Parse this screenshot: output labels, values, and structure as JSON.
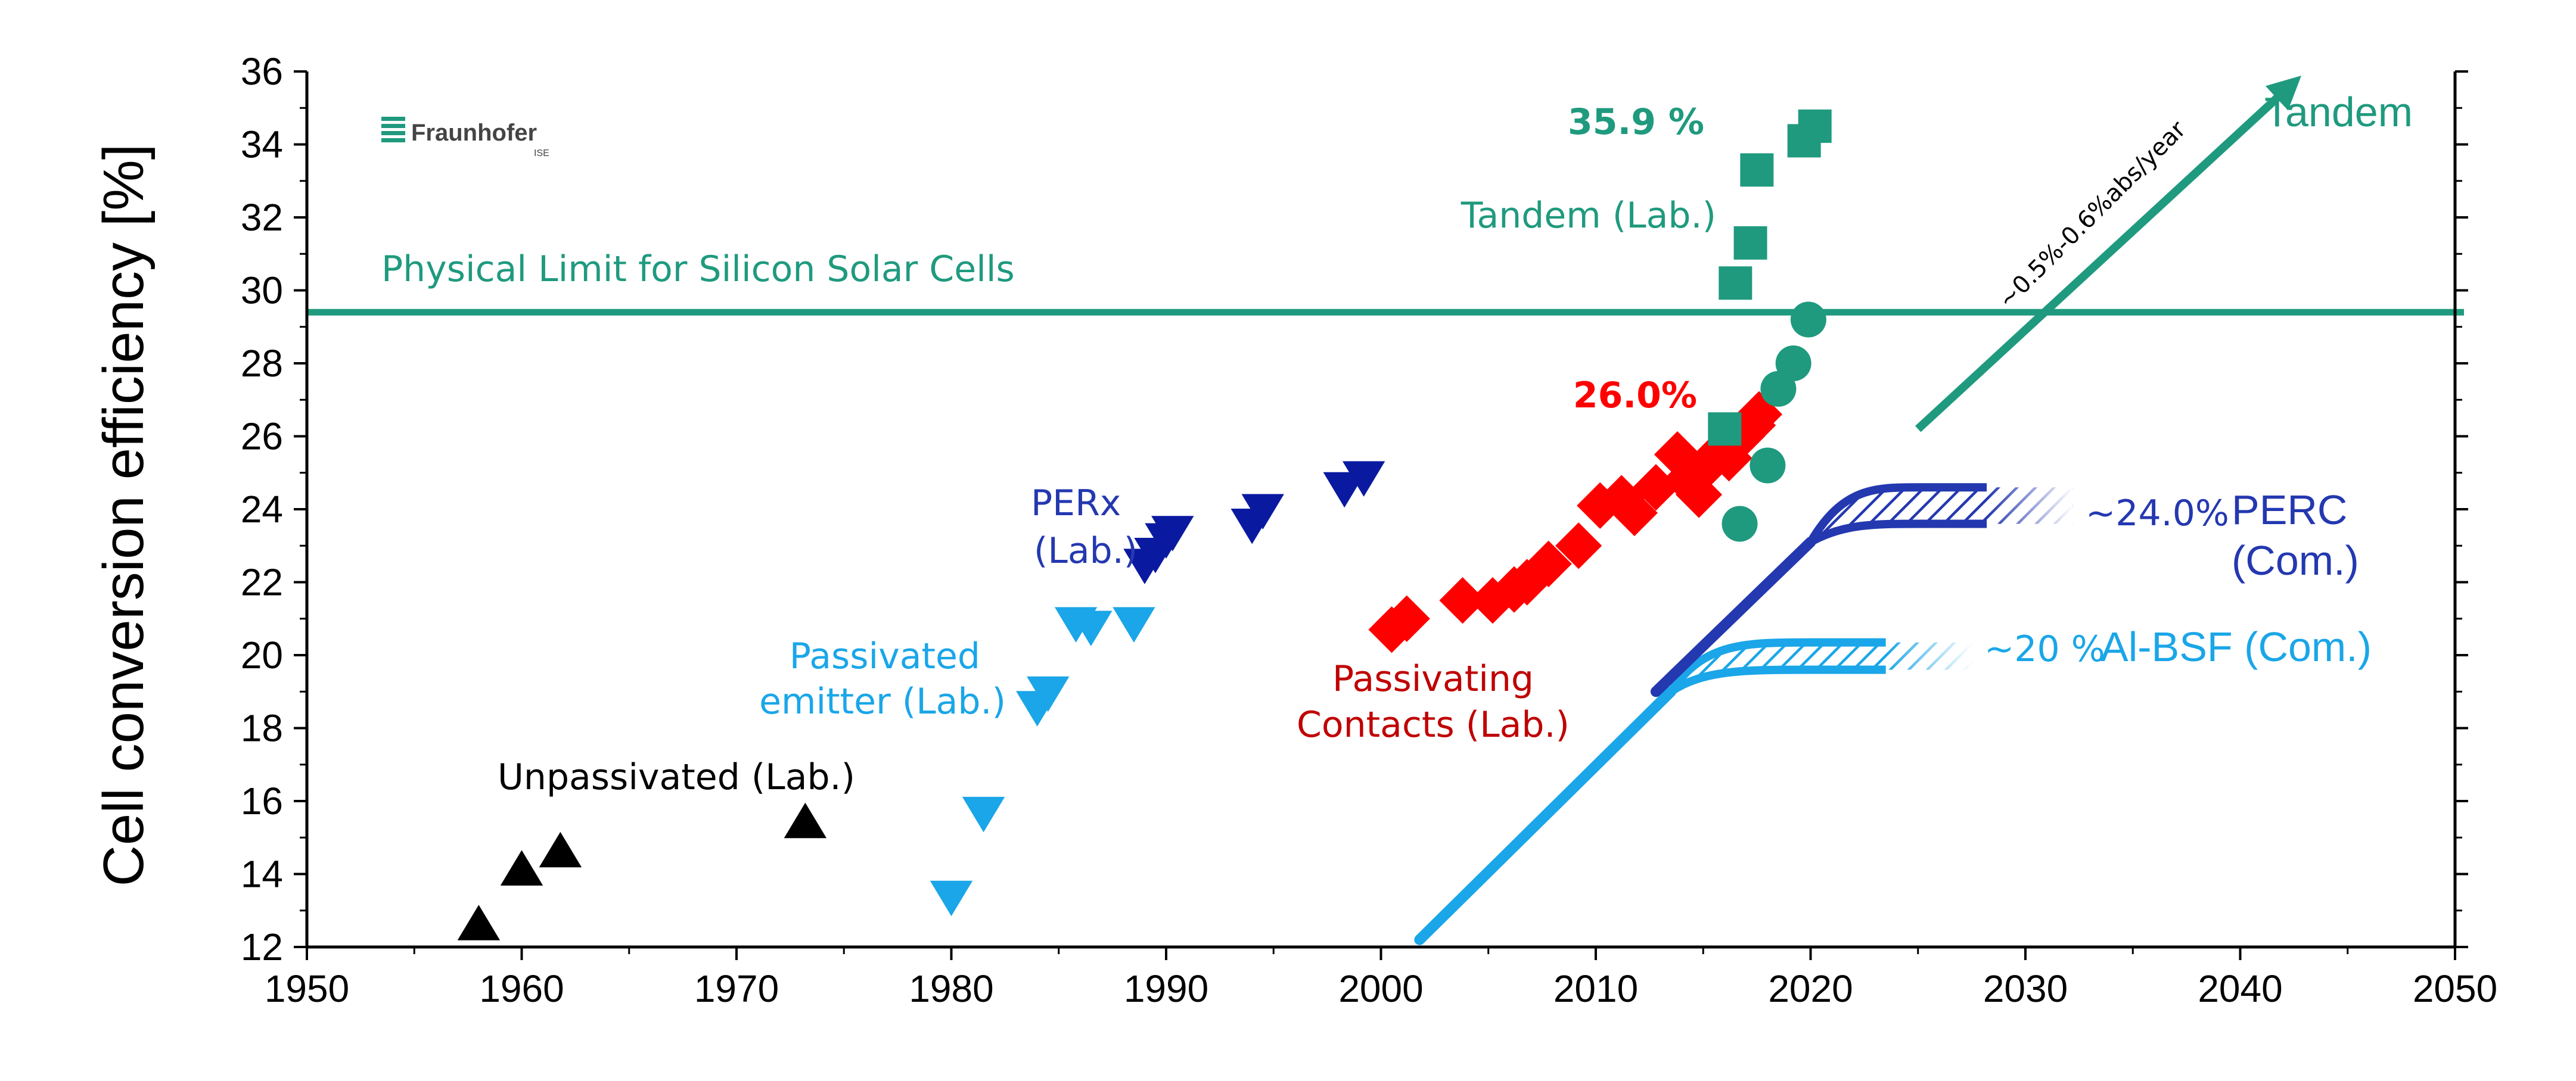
{
  "chart_data": {
    "type": "scatter",
    "ylabel": "Cell conversion efficiency [%]",
    "xlim": [
      1950,
      2050
    ],
    "ylim": [
      12,
      36
    ],
    "x_ticks": [
      1950,
      1960,
      1970,
      1980,
      1990,
      2000,
      2010,
      2020,
      2030,
      2040,
      2050
    ],
    "y_ticks": [
      12,
      14,
      16,
      18,
      20,
      22,
      24,
      26,
      28,
      30,
      32,
      34,
      36
    ],
    "grid": false,
    "logo": "Fraunhofer ISE",
    "limit_line": {
      "label": "Physical Limit for Silicon Solar Cells",
      "y": 29.4
    },
    "series": [
      {
        "name": "Unpassivated (Lab.)",
        "marker": "triangle-up",
        "color": "#000000",
        "x": [
          1958,
          1960,
          1961.8,
          1973.2
        ],
        "y": [
          12.6,
          14.1,
          14.6,
          15.4
        ]
      },
      {
        "name": "Passivated emitter (Lab.)",
        "marker": "triangle-down",
        "color": "#1aa6e8",
        "x": [
          1980,
          1981.5,
          1984,
          1984.5,
          1985.8,
          1986.5,
          1988.5
        ],
        "y": [
          13.4,
          15.7,
          18.6,
          19.0,
          20.9,
          20.8,
          20.9
        ]
      },
      {
        "name": "PERx (Lab.)",
        "marker": "triangle-down",
        "color": "#0a1aa0",
        "x": [
          1989,
          1989.5,
          1990,
          1990.3,
          1994,
          1994.5,
          1998.3,
          1999.2
        ],
        "y": [
          22.5,
          22.8,
          23.2,
          23.4,
          23.6,
          24.0,
          24.6,
          24.9
        ]
      },
      {
        "name": "Passivating Contacts (Lab.)",
        "marker": "diamond",
        "color": "#ff0000",
        "x": [
          2000.5,
          2001.2,
          2003.8,
          2005.2,
          2006.2,
          2006.8,
          2007.8,
          2009.2,
          2010.2,
          2011.2,
          2011.8,
          2012.8,
          2013.8,
          2014.2,
          2014.8,
          2015.2,
          2015.8,
          2016.2,
          2016.8,
          2017.3,
          2017.6
        ],
        "y": [
          20.7,
          21.0,
          21.5,
          21.5,
          21.8,
          22.0,
          22.5,
          23.0,
          24.1,
          24.3,
          23.9,
          24.6,
          25.5,
          24.8,
          24.4,
          25.2,
          25.6,
          25.4,
          26.0,
          26.3,
          26.6
        ]
      },
      {
        "name": "Tandem (Lab.)",
        "marker": "square",
        "color": "#1f9a7e",
        "x": [
          2016,
          2016.5,
          2017.2,
          2017.5,
          2019.7,
          2020.2
        ],
        "y": [
          26.2,
          30.2,
          31.3,
          33.3,
          34.1,
          34.5
        ]
      },
      {
        "name": "Tandem (Lab.)",
        "marker": "circle",
        "color": "#1f9a7e",
        "x": [
          2016.7,
          2018,
          2018.5,
          2019.2,
          2019.9
        ],
        "y": [
          23.6,
          25.2,
          27.3,
          28.0,
          29.2
        ]
      }
    ],
    "trends": [
      {
        "name": "PERC (Com.)",
        "color": "#2438b0",
        "label_value": "~24.0%",
        "label_name": "PERC",
        "label_sub": "(Com.)"
      },
      {
        "name": "Al-BSF (Com.)",
        "color": "#1aa6e8",
        "label_value": "~20 %",
        "label_name": "Al-BSF (Com.)"
      },
      {
        "name": "Tandem",
        "color": "#1f9a7e",
        "rate_label": "~0.5%-0.6%abs/year",
        "label_name": "Tandem"
      }
    ],
    "annotations": {
      "unpassivated": "Unpassivated (Lab.)",
      "passivated_line1": "Passivated",
      "passivated_line2": "emitter (Lab.)",
      "perx_line1": "PERx",
      "perx_line2": "(Lab.)",
      "passivating_line1": "Passivating",
      "passivating_line2": "Contacts (Lab.)",
      "tandem_lab": "Tandem (Lab.)",
      "tandem_record": "35.9 %",
      "si_record": "26.0%"
    }
  }
}
